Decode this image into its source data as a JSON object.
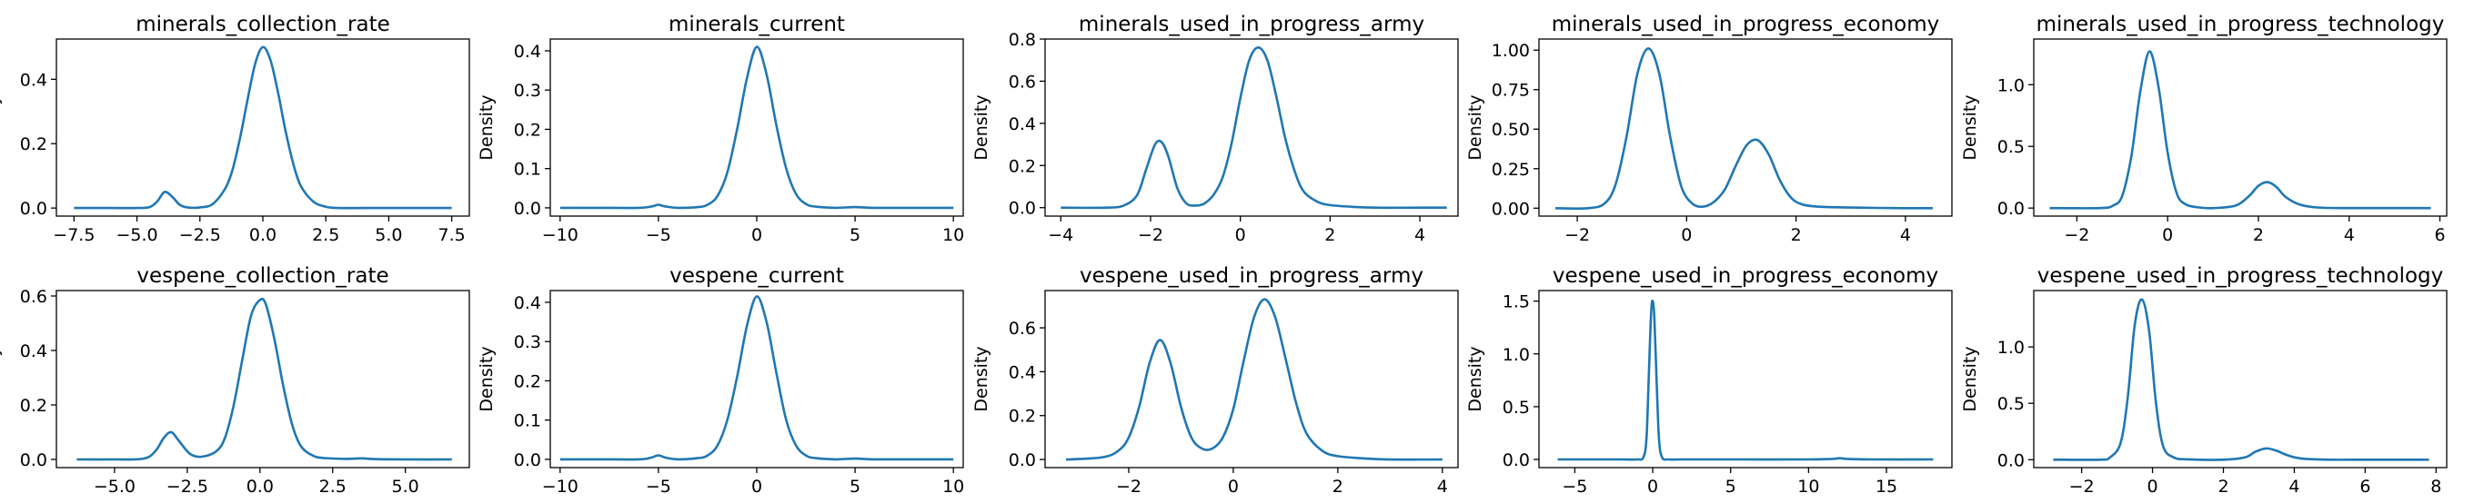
{
  "chart_data": [
    {
      "type": "line",
      "title": "minerals_collection_rate",
      "xlabel": "",
      "ylabel": "Density",
      "xlim": [
        -8.2,
        8.2
      ],
      "ylim": [
        -0.025,
        0.525
      ],
      "xticks": [
        -7.5,
        -5.0,
        -2.5,
        0.0,
        2.5,
        5.0,
        7.5
      ],
      "xticklabels": [
        "−7.5",
        "−5.0",
        "−2.5",
        "0.0",
        "2.5",
        "5.0",
        "7.5"
      ],
      "yticks": [
        0.0,
        0.2,
        0.4
      ],
      "yticklabels": [
        "0.0",
        "0.2",
        "0.4"
      ],
      "series": [
        {
          "x": [
            -7.5,
            -6.0,
            -5.0,
            -4.5,
            -4.2,
            -3.9,
            -3.6,
            -3.3,
            -3.0,
            -2.5,
            -2.0,
            -1.5,
            -1.2,
            -0.9,
            -0.6,
            -0.3,
            0.0,
            0.3,
            0.6,
            0.9,
            1.2,
            1.5,
            2.0,
            2.5,
            3.0,
            4.0,
            5.0,
            6.0,
            7.5
          ],
          "y": [
            0.0,
            0.0,
            0.0,
            0.003,
            0.02,
            0.05,
            0.035,
            0.01,
            0.002,
            0.002,
            0.012,
            0.06,
            0.12,
            0.22,
            0.34,
            0.45,
            0.5,
            0.46,
            0.36,
            0.24,
            0.14,
            0.07,
            0.02,
            0.004,
            0.0,
            0.0,
            0.0,
            0.0,
            0.0
          ]
        }
      ]
    },
    {
      "type": "line",
      "title": "minerals_current",
      "xlabel": "",
      "ylabel": "Density",
      "xlim": [
        -10.5,
        10.5
      ],
      "ylim": [
        -0.021,
        0.43
      ],
      "xticks": [
        -10,
        -5,
        0,
        5,
        10
      ],
      "xticklabels": [
        "−10",
        "−5",
        "0",
        "5",
        "10"
      ],
      "yticks": [
        0.0,
        0.1,
        0.2,
        0.3,
        0.4
      ],
      "yticklabels": [
        "0.0",
        "0.1",
        "0.2",
        "0.3",
        "0.4"
      ],
      "series": [
        {
          "x": [
            -10.0,
            -8.0,
            -6.0,
            -5.3,
            -5.0,
            -4.7,
            -4.0,
            -3.0,
            -2.5,
            -2.0,
            -1.5,
            -1.0,
            -0.5,
            0.0,
            0.5,
            1.0,
            1.5,
            2.0,
            2.5,
            3.0,
            4.0,
            5.0,
            6.0,
            8.0,
            10.0
          ],
          "y": [
            0.0,
            0.0,
            0.0,
            0.004,
            0.008,
            0.004,
            0.0,
            0.002,
            0.008,
            0.03,
            0.09,
            0.2,
            0.33,
            0.41,
            0.34,
            0.21,
            0.1,
            0.035,
            0.01,
            0.003,
            0.0,
            0.002,
            0.0,
            0.0,
            0.0
          ]
        }
      ]
    },
    {
      "type": "line",
      "title": "minerals_used_in_progress_army",
      "xlabel": "",
      "ylabel": "Density",
      "xlim": [
        -4.35,
        4.85
      ],
      "ylim": [
        -0.04,
        0.8
      ],
      "xticks": [
        -4,
        -2,
        0,
        2,
        4
      ],
      "xticklabels": [
        "−4",
        "−2",
        "0",
        "2",
        "4"
      ],
      "yticks": [
        0.0,
        0.2,
        0.4,
        0.6,
        0.8
      ],
      "yticklabels": [
        "0.0",
        "0.2",
        "0.4",
        "0.6",
        "0.8"
      ],
      "series": [
        {
          "x": [
            -4.0,
            -3.0,
            -2.6,
            -2.3,
            -2.1,
            -1.9,
            -1.75,
            -1.6,
            -1.4,
            -1.2,
            -1.0,
            -0.8,
            -0.6,
            -0.4,
            -0.2,
            0.0,
            0.2,
            0.4,
            0.6,
            0.8,
            1.0,
            1.2,
            1.4,
            1.7,
            2.0,
            2.5,
            3.0,
            4.0,
            4.6
          ],
          "y": [
            0.0,
            0.0,
            0.01,
            0.06,
            0.18,
            0.3,
            0.31,
            0.24,
            0.09,
            0.02,
            0.01,
            0.02,
            0.06,
            0.14,
            0.3,
            0.52,
            0.7,
            0.76,
            0.7,
            0.53,
            0.33,
            0.18,
            0.08,
            0.03,
            0.012,
            0.004,
            0.0,
            0.0,
            0.0
          ]
        }
      ]
    },
    {
      "type": "line",
      "title": "minerals_used_in_progress_economy",
      "xlabel": "",
      "ylabel": "Density",
      "xlim": [
        -2.7,
        4.85
      ],
      "ylim": [
        -0.05,
        1.07
      ],
      "xticks": [
        -2,
        0,
        2,
        4
      ],
      "xticklabels": [
        "−2",
        "0",
        "2",
        "4"
      ],
      "yticks": [
        0.0,
        0.25,
        0.5,
        0.75,
        1.0
      ],
      "yticklabels": [
        "0.00",
        "0.25",
        "0.50",
        "0.75",
        "1.00"
      ],
      "series": [
        {
          "x": [
            -2.4,
            -1.8,
            -1.5,
            -1.3,
            -1.1,
            -0.9,
            -0.7,
            -0.5,
            -0.3,
            -0.1,
            0.1,
            0.3,
            0.5,
            0.7,
            0.9,
            1.1,
            1.3,
            1.5,
            1.7,
            1.9,
            2.1,
            2.4,
            3.0,
            4.0,
            4.5
          ],
          "y": [
            0.0,
            0.0,
            0.03,
            0.15,
            0.45,
            0.85,
            1.01,
            0.85,
            0.45,
            0.14,
            0.03,
            0.01,
            0.04,
            0.12,
            0.27,
            0.4,
            0.43,
            0.34,
            0.18,
            0.07,
            0.025,
            0.01,
            0.004,
            0.0,
            0.0
          ]
        }
      ]
    },
    {
      "type": "line",
      "title": "minerals_used_in_progress_technology",
      "xlabel": "",
      "ylabel": "Density",
      "xlim": [
        -2.95,
        6.15
      ],
      "ylim": [
        -0.065,
        1.37
      ],
      "xticks": [
        -2,
        0,
        2,
        4,
        6
      ],
      "xticklabels": [
        "−2",
        "0",
        "2",
        "4",
        "6"
      ],
      "yticks": [
        0.0,
        0.5,
        1.0
      ],
      "yticklabels": [
        "0.0",
        "0.5",
        "1.0"
      ],
      "series": [
        {
          "x": [
            -2.6,
            -1.5,
            -1.2,
            -1.0,
            -0.8,
            -0.6,
            -0.4,
            -0.2,
            0.0,
            0.2,
            0.4,
            0.7,
            1.0,
            1.5,
            1.8,
            2.0,
            2.2,
            2.4,
            2.6,
            2.9,
            3.3,
            4.0,
            5.0,
            5.8
          ],
          "y": [
            0.0,
            0.0,
            0.02,
            0.1,
            0.42,
            0.95,
            1.27,
            0.98,
            0.45,
            0.12,
            0.03,
            0.005,
            0.0,
            0.02,
            0.1,
            0.18,
            0.21,
            0.17,
            0.09,
            0.03,
            0.005,
            0.0,
            0.0,
            0.0
          ]
        }
      ]
    },
    {
      "type": "line",
      "title": "vespene_collection_rate",
      "xlabel": "",
      "ylabel": "Density",
      "xlim": [
        -7.0,
        7.2
      ],
      "ylim": [
        -0.03,
        0.62
      ],
      "xticks": [
        -5.0,
        -2.5,
        0.0,
        2.5,
        5.0
      ],
      "xticklabels": [
        "−5.0",
        "−2.5",
        "0.0",
        "2.5",
        "5.0"
      ],
      "yticks": [
        0.0,
        0.2,
        0.4,
        0.6
      ],
      "yticklabels": [
        "0.0",
        "0.2",
        "0.4",
        "0.6"
      ],
      "series": [
        {
          "x": [
            -6.3,
            -5.0,
            -4.0,
            -3.6,
            -3.3,
            -3.05,
            -2.8,
            -2.4,
            -2.0,
            -1.5,
            -1.2,
            -0.9,
            -0.6,
            -0.3,
            0.0,
            0.2,
            0.5,
            0.8,
            1.1,
            1.4,
            1.8,
            2.2,
            3.0,
            3.5,
            4.0,
            5.0,
            6.6
          ],
          "y": [
            0.0,
            0.0,
            0.003,
            0.03,
            0.08,
            0.1,
            0.07,
            0.02,
            0.01,
            0.03,
            0.08,
            0.2,
            0.37,
            0.53,
            0.585,
            0.57,
            0.44,
            0.27,
            0.13,
            0.05,
            0.015,
            0.005,
            0.002,
            0.004,
            0.001,
            0.0,
            0.0
          ]
        }
      ]
    },
    {
      "type": "line",
      "title": "vespene_current",
      "xlabel": "",
      "ylabel": "Density",
      "xlim": [
        -10.5,
        10.5
      ],
      "ylim": [
        -0.021,
        0.43
      ],
      "xticks": [
        -10,
        -5,
        0,
        5,
        10
      ],
      "xticklabels": [
        "−10",
        "−5",
        "0",
        "5",
        "10"
      ],
      "yticks": [
        0.0,
        0.1,
        0.2,
        0.3,
        0.4
      ],
      "yticklabels": [
        "0.0",
        "0.1",
        "0.2",
        "0.3",
        "0.4"
      ],
      "series": [
        {
          "x": [
            -10.0,
            -8.0,
            -6.0,
            -5.4,
            -5.0,
            -4.6,
            -4.0,
            -3.0,
            -2.5,
            -2.0,
            -1.5,
            -1.0,
            -0.5,
            0.0,
            0.5,
            1.0,
            1.5,
            2.0,
            2.5,
            3.0,
            4.0,
            5.0,
            6.0,
            8.0,
            10.0
          ],
          "y": [
            0.0,
            0.0,
            0.0,
            0.004,
            0.01,
            0.004,
            0.0,
            0.003,
            0.01,
            0.035,
            0.1,
            0.21,
            0.34,
            0.415,
            0.35,
            0.22,
            0.1,
            0.035,
            0.01,
            0.003,
            0.0,
            0.002,
            0.0,
            0.0,
            0.0
          ]
        }
      ]
    },
    {
      "type": "line",
      "title": "vespene_used_in_progress_army",
      "xlabel": "",
      "ylabel": "Density",
      "xlim": [
        -3.6,
        4.3
      ],
      "ylim": [
        -0.037,
        0.77
      ],
      "xticks": [
        -2,
        0,
        2,
        4
      ],
      "xticklabels": [
        "−2",
        "0",
        "2",
        "4"
      ],
      "yticks": [
        0.0,
        0.2,
        0.4,
        0.6
      ],
      "yticklabels": [
        "0.0",
        "0.2",
        "0.4",
        "0.6"
      ],
      "series": [
        {
          "x": [
            -3.2,
            -2.5,
            -2.2,
            -2.0,
            -1.8,
            -1.6,
            -1.4,
            -1.2,
            -1.0,
            -0.8,
            -0.6,
            -0.4,
            -0.2,
            0.0,
            0.2,
            0.4,
            0.6,
            0.8,
            1.0,
            1.2,
            1.4,
            1.7,
            2.0,
            2.5,
            3.0,
            4.0
          ],
          "y": [
            0.0,
            0.01,
            0.04,
            0.1,
            0.24,
            0.44,
            0.545,
            0.44,
            0.24,
            0.1,
            0.05,
            0.05,
            0.1,
            0.23,
            0.45,
            0.65,
            0.73,
            0.65,
            0.46,
            0.26,
            0.12,
            0.04,
            0.015,
            0.005,
            0.0,
            0.0
          ]
        }
      ]
    },
    {
      "type": "line",
      "title": "vespene_used_in_progress_economy",
      "xlabel": "",
      "ylabel": "Density",
      "xlim": [
        -7.3,
        19.2
      ],
      "ylim": [
        -0.077,
        1.6
      ],
      "xticks": [
        -5,
        0,
        5,
        10,
        15
      ],
      "xticklabels": [
        "−5",
        "0",
        "5",
        "10",
        "15"
      ],
      "yticks": [
        0.0,
        0.5,
        1.0,
        1.5
      ],
      "yticklabels": [
        "0.0",
        "0.5",
        "1.0",
        "1.5"
      ],
      "series": [
        {
          "x": [
            -6.1,
            -2.0,
            -1.0,
            -0.6,
            -0.4,
            -0.25,
            -0.1,
            0.0,
            0.1,
            0.25,
            0.4,
            0.6,
            1.0,
            2.0,
            5.0,
            10.0,
            11.5,
            12.0,
            12.5,
            14.0,
            18.0
          ],
          "y": [
            0.0,
            0.0,
            0.0,
            0.02,
            0.2,
            0.8,
            1.4,
            1.5,
            1.35,
            0.75,
            0.2,
            0.02,
            0.0,
            0.0,
            0.0,
            0.0,
            0.005,
            0.012,
            0.005,
            0.0,
            0.0
          ]
        }
      ]
    },
    {
      "type": "line",
      "title": "vespene_used_in_progress_technology",
      "xlabel": "",
      "ylabel": "Density",
      "xlim": [
        -3.35,
        8.3
      ],
      "ylim": [
        -0.07,
        1.5
      ],
      "xticks": [
        -2,
        0,
        2,
        4,
        6,
        8
      ],
      "xticklabels": [
        "−2",
        "0",
        "2",
        "4",
        "6",
        "8"
      ],
      "yticks": [
        0.0,
        0.5,
        1.0
      ],
      "yticklabels": [
        "0.0",
        "0.5",
        "1.0"
      ],
      "series": [
        {
          "x": [
            -2.8,
            -1.5,
            -1.2,
            -0.9,
            -0.7,
            -0.5,
            -0.3,
            -0.1,
            0.1,
            0.3,
            0.6,
            1.0,
            2.0,
            2.6,
            2.9,
            3.2,
            3.5,
            3.8,
            4.2,
            5.0,
            6.0,
            7.8
          ],
          "y": [
            0.0,
            0.0,
            0.02,
            0.15,
            0.55,
            1.2,
            1.42,
            1.15,
            0.5,
            0.12,
            0.02,
            0.003,
            0.0,
            0.02,
            0.07,
            0.1,
            0.08,
            0.04,
            0.01,
            0.0,
            0.0,
            0.0
          ]
        }
      ]
    }
  ]
}
